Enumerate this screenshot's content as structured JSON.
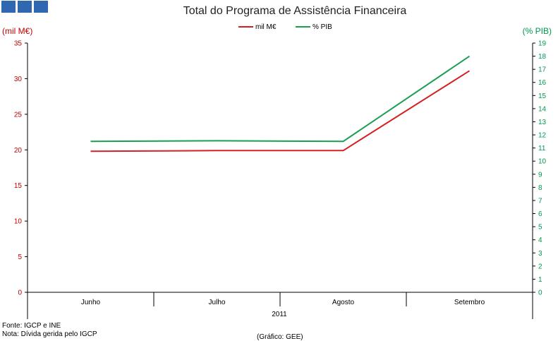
{
  "brand": {
    "logo_blocks": 3,
    "color": "#2f67b1"
  },
  "chart_data": {
    "type": "line",
    "title": "Total do Programa de Assistência Financeira",
    "categories": [
      "Junho",
      "Julho",
      "Agosto",
      "Setembro"
    ],
    "x_group_label": "2011",
    "left_axis": {
      "label": "(mil M€)",
      "ylim": [
        0,
        35
      ],
      "ticks": [
        0,
        5,
        10,
        15,
        20,
        25,
        30,
        35
      ],
      "color": "#c00000"
    },
    "right_axis": {
      "label": "(% PIB)",
      "ylim": [
        0,
        19
      ],
      "ticks": [
        0,
        1,
        2,
        3,
        4,
        5,
        6,
        7,
        8,
        9,
        10,
        11,
        12,
        13,
        14,
        15,
        16,
        17,
        18,
        19
      ],
      "color": "#00994d"
    },
    "series": [
      {
        "name": "mil M€",
        "axis": "left",
        "color": "#d42020",
        "values": [
          19.8,
          19.9,
          19.9,
          31.1
        ]
      },
      {
        "name": "% PIB",
        "axis": "right",
        "color": "#18a050",
        "values": [
          11.5,
          11.55,
          11.5,
          18.0
        ]
      }
    ],
    "legend": "top-center",
    "grid": false
  },
  "footer": {
    "source": "Fonte: IGCP e INE",
    "note": "Nota: Dívida gerida pelo IGCP",
    "credit": "(Gráfico: GEE)"
  }
}
